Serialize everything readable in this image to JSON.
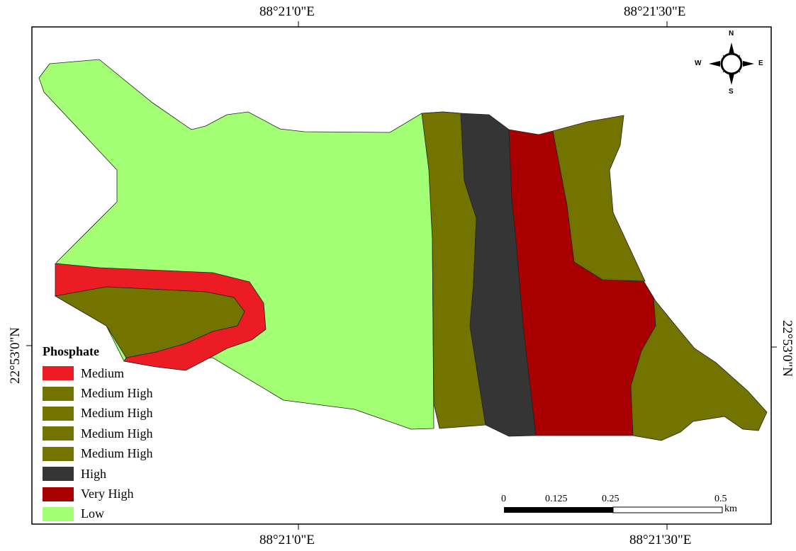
{
  "coordinates": {
    "top_left": "88°21'0\"E",
    "top_right": "88°21'30\"E",
    "bottom_left": "88°21'0\"E",
    "bottom_right": "88°21'30\"E",
    "left": "22°53'0\"N",
    "right": "22°53'0\"N"
  },
  "legend": {
    "title": "Phosphate",
    "items": [
      {
        "label": "Medium",
        "color": "#ec1c24"
      },
      {
        "label": "Medium High",
        "color": "#737300"
      },
      {
        "label": "Medium High",
        "color": "#737300"
      },
      {
        "label": "Medium High",
        "color": "#737300"
      },
      {
        "label": "Medium High",
        "color": "#737300"
      },
      {
        "label": "High",
        "color": "#353535"
      },
      {
        "label": "Very High",
        "color": "#a80000"
      },
      {
        "label": "Low",
        "color": "#a3ff73"
      }
    ]
  },
  "north_arrow": {
    "icon": "compass-rose-icon",
    "n": "N",
    "s": "S",
    "e": "E",
    "w": "W"
  },
  "scale_bar": {
    "ticks": [
      "0",
      "0.125",
      "0.25",
      "0.5"
    ],
    "unit": "km"
  },
  "zones": {
    "low": "Low",
    "medium": "Medium",
    "medium_high": "Medium High",
    "high": "High",
    "very_high": "Very High"
  }
}
